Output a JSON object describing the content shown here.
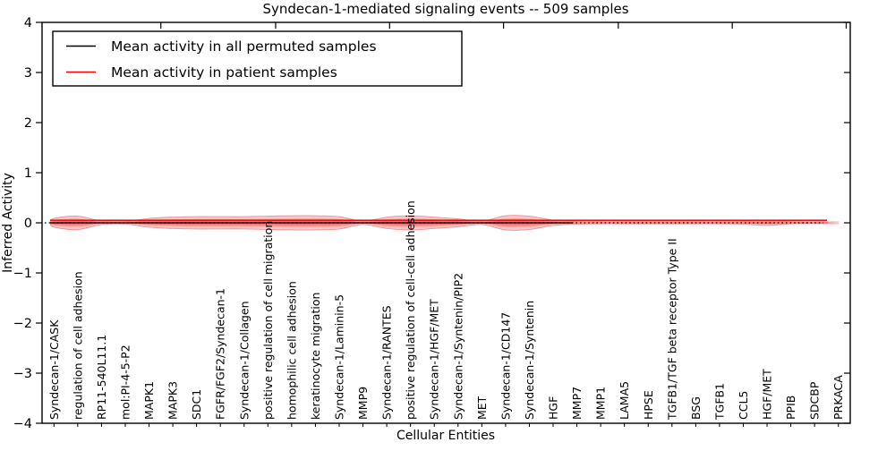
{
  "figure": {
    "background": "#ffffff",
    "frame_color": "#000000"
  },
  "legend": {
    "entries": [
      {
        "label": "Mean activity in all permuted samples",
        "color": "#000000"
      },
      {
        "label": "Mean activity in patient samples",
        "color": "#ff0000"
      }
    ]
  },
  "chart_data": {
    "type": "line",
    "subtype": "violin-band-around-mean-lines",
    "title": "Syndecan-1-mediated signaling events -- 509 samples",
    "xlabel": "Cellular Entities",
    "ylabel": "Inferred Activity",
    "ylim": [
      -4,
      4
    ],
    "yticks": [
      4,
      3,
      2,
      1,
      0,
      -1,
      -2,
      -3,
      -4
    ],
    "grid": false,
    "legend_position": "upper-left",
    "band_color": "#e41a1c",
    "band_alpha": 0.25,
    "zero_reference_line": {
      "style": "dotted",
      "color": "#000000",
      "value": 0
    },
    "categories": [
      "Syndecan-1/CASK",
      "regulation of cell adhesion",
      "RP11-540L11.1",
      "mol:PI-4-5-P2",
      "MAPK1",
      "MAPK3",
      "SDC1",
      "FGFR/FGF2/Syndecan-1",
      "Syndecan-1/Collagen",
      "positive regulation of cell migration",
      "homophilic cell adhesion",
      "keratinocyte migration",
      "Syndecan-1/Laminin-5",
      "MMP9",
      "Syndecan-1/RANTES",
      "positive regulation of cell-cell adhesion",
      "Syndecan-1/HGF/MET",
      "Syndecan-1/Syntenin/PIP2",
      "MET",
      "Syndecan-1/CD147",
      "Syndecan-1/Syntenin",
      "HGF",
      "MMP7",
      "MMP1",
      "LAMA5",
      "HPSE",
      "TGFB1/TGF beta receptor Type II",
      "BSG",
      "TGFB1",
      "CCL5",
      "HGF/MET",
      "PPIB",
      "SDCBP",
      "PRKACA"
    ],
    "series": [
      {
        "name": "Mean activity in all permuted samples",
        "type": "line",
        "color": "#000000",
        "style": "solid",
        "value": 0.0
      },
      {
        "name": "Mean activity in patient samples",
        "type": "line",
        "color": "#ff0000",
        "style": "solid",
        "value": 0.05
      },
      {
        "name": "activity spread half-width per entity",
        "type": "violin-halfwidth",
        "color": "#e41a1c",
        "half_widths": [
          0.09,
          0.135,
          0.035,
          0.027,
          0.09,
          0.115,
          0.125,
          0.125,
          0.125,
          0.134,
          0.143,
          0.143,
          0.125,
          0.035,
          0.115,
          0.143,
          0.115,
          0.08,
          0.035,
          0.143,
          0.134,
          0.054,
          0.027,
          0.021,
          0.021,
          0.021,
          0.021,
          0.021,
          0.021,
          0.027,
          0.054,
          0.021,
          0.018,
          0.018
        ]
      }
    ]
  }
}
